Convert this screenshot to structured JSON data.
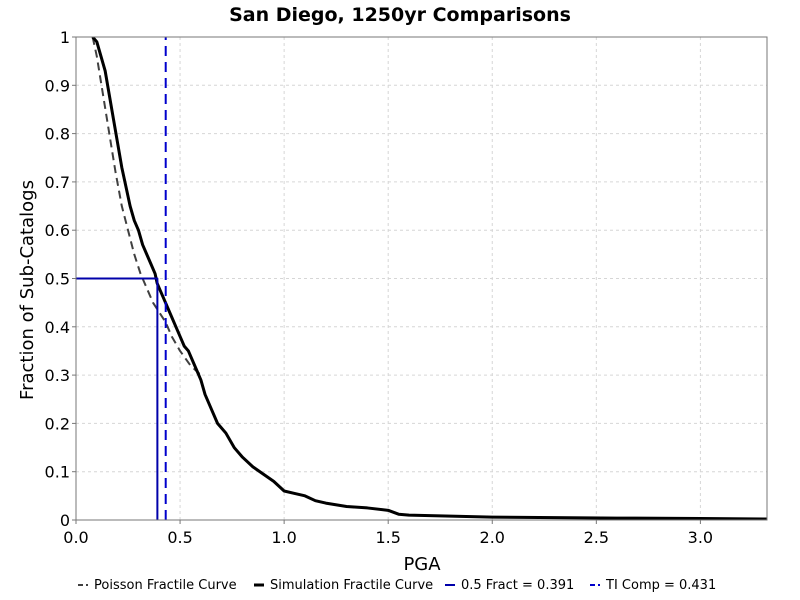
{
  "chart_data": {
    "type": "line",
    "title": "San Diego, 1250yr Comparisons",
    "xlabel": "PGA",
    "ylabel": "Fraction of Sub-Catalogs",
    "xlim": [
      0,
      3.32
    ],
    "ylim": [
      0,
      1
    ],
    "x_ticks": [
      {
        "value": 0.0,
        "label": "0.0"
      },
      {
        "value": 0.5,
        "label": "0.5"
      },
      {
        "value": 1.0,
        "label": "1.0"
      },
      {
        "value": 1.5,
        "label": "1.5"
      },
      {
        "value": 2.0,
        "label": "2.0"
      },
      {
        "value": 2.5,
        "label": "2.5"
      },
      {
        "value": 3.0,
        "label": "3.0"
      }
    ],
    "y_ticks": [
      {
        "value": 0.0,
        "label": "0"
      },
      {
        "value": 0.1,
        "label": "0.1"
      },
      {
        "value": 0.2,
        "label": "0.2"
      },
      {
        "value": 0.3,
        "label": "0.3"
      },
      {
        "value": 0.4,
        "label": "0.4"
      },
      {
        "value": 0.5,
        "label": "0.5"
      },
      {
        "value": 0.6,
        "label": "0.6"
      },
      {
        "value": 0.7,
        "label": "0.7"
      },
      {
        "value": 0.8,
        "label": "0.8"
      },
      {
        "value": 0.9,
        "label": "0.9"
      },
      {
        "value": 1.0,
        "label": "1"
      }
    ],
    "grid": true,
    "legend_position": "bottom",
    "series": [
      {
        "name": "Poisson Fractile Curve",
        "color": "#404040",
        "style": "dashed",
        "x": [
          0.08,
          0.1,
          0.13,
          0.16,
          0.19,
          0.22,
          0.25,
          0.28,
          0.31,
          0.34,
          0.37,
          0.4,
          0.43,
          0.46,
          0.5,
          0.55,
          0.6
        ],
        "y": [
          1.0,
          0.96,
          0.88,
          0.8,
          0.72,
          0.65,
          0.6,
          0.55,
          0.51,
          0.48,
          0.45,
          0.43,
          0.41,
          0.38,
          0.35,
          0.32,
          0.3
        ]
      },
      {
        "name": "Simulation Fractile Curve",
        "color": "#000000",
        "style": "solid",
        "x": [
          0.08,
          0.1,
          0.12,
          0.14,
          0.16,
          0.18,
          0.2,
          0.22,
          0.24,
          0.26,
          0.28,
          0.3,
          0.32,
          0.34,
          0.36,
          0.38,
          0.39,
          0.4,
          0.42,
          0.44,
          0.46,
          0.48,
          0.5,
          0.52,
          0.54,
          0.56,
          0.58,
          0.6,
          0.62,
          0.65,
          0.68,
          0.72,
          0.76,
          0.8,
          0.85,
          0.9,
          0.95,
          1.0,
          1.05,
          1.1,
          1.15,
          1.2,
          1.3,
          1.4,
          1.5,
          1.55,
          1.6,
          1.8,
          2.0,
          2.3,
          2.6,
          3.0,
          3.32
        ],
        "y": [
          1.0,
          0.99,
          0.96,
          0.93,
          0.88,
          0.83,
          0.78,
          0.73,
          0.69,
          0.65,
          0.62,
          0.6,
          0.57,
          0.55,
          0.53,
          0.51,
          0.49,
          0.48,
          0.46,
          0.44,
          0.42,
          0.4,
          0.38,
          0.36,
          0.35,
          0.33,
          0.31,
          0.29,
          0.26,
          0.23,
          0.2,
          0.18,
          0.15,
          0.13,
          0.11,
          0.095,
          0.08,
          0.06,
          0.055,
          0.05,
          0.04,
          0.035,
          0.028,
          0.025,
          0.02,
          0.012,
          0.01,
          0.008,
          0.006,
          0.005,
          0.004,
          0.003,
          0.002
        ]
      },
      {
        "name": "0.5 Fract = 0.391",
        "color": "#0000aa",
        "style": "solid",
        "x": [
          0.0,
          0.391,
          0.391
        ],
        "y": [
          0.5,
          0.5,
          0.0
        ]
      },
      {
        "name": "TI Comp = 0.431",
        "color": "#0000cc",
        "style": "dashed",
        "x": [
          0.431,
          0.431
        ],
        "y": [
          0.0,
          1.0
        ]
      }
    ]
  }
}
